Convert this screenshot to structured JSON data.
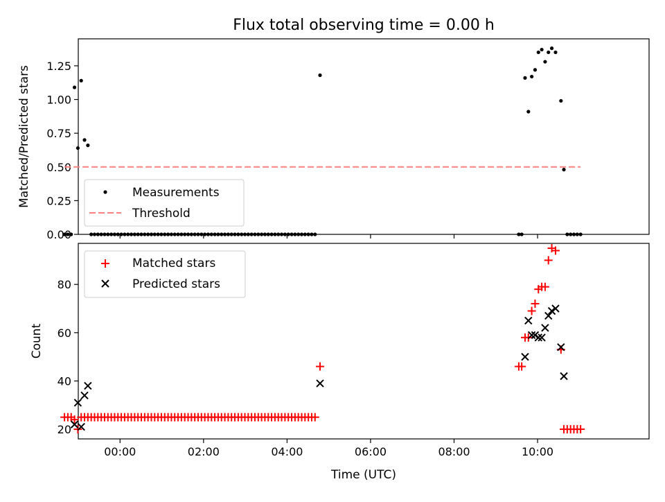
{
  "title": "Flux total observing time = 0.00 h",
  "colors": {
    "measurement": "#000000",
    "threshold": "#ff7f7f",
    "matched": "#ff0000",
    "predicted": "#000000"
  },
  "chart_data": [
    {
      "type": "scatter",
      "ylabel": "Matched/Predicted stars",
      "xlim": [
        -1.0,
        12.67
      ],
      "ylim": [
        0,
        1.45
      ],
      "yticks": [
        "0.00",
        "0.25",
        "0.50",
        "0.75",
        "1.00",
        "1.25"
      ],
      "grid": false,
      "legend_position": "lower-left",
      "series": [
        {
          "name": "Measurements",
          "marker": "dot",
          "x": [
            -1.33,
            -1.25,
            -1.17,
            -1.09,
            -1.01,
            -0.93,
            -0.85,
            -0.77,
            -0.69,
            -0.61,
            -0.53,
            -0.45,
            -0.37,
            -0.29,
            -0.21,
            -0.13,
            -0.05,
            0.03,
            0.11,
            0.19,
            0.27,
            0.35,
            0.43,
            0.51,
            0.59,
            0.67,
            0.75,
            0.83,
            0.91,
            0.99,
            1.07,
            1.15,
            1.23,
            1.31,
            1.39,
            1.47,
            1.55,
            1.63,
            1.71,
            1.79,
            1.87,
            1.95,
            2.03,
            2.11,
            2.19,
            2.27,
            2.35,
            2.43,
            2.51,
            2.59,
            2.67,
            2.75,
            2.83,
            2.91,
            2.99,
            3.07,
            3.15,
            3.23,
            3.31,
            3.39,
            3.47,
            3.55,
            3.63,
            3.71,
            3.79,
            3.87,
            3.95,
            4.03,
            4.11,
            4.19,
            4.27,
            4.35,
            4.43,
            4.51,
            4.59,
            4.67,
            4.79,
            9.55,
            9.62,
            9.7,
            9.78,
            9.86,
            9.94,
            10.02,
            10.1,
            10.18,
            10.26,
            10.34,
            10.43,
            10.56,
            10.63,
            10.71,
            10.79,
            10.87,
            10.95,
            11.03
          ],
          "y": [
            0,
            0,
            0,
            1.09,
            0.64,
            1.14,
            0.7,
            0.66,
            0,
            0,
            0,
            0,
            0,
            0,
            0,
            0,
            0,
            0,
            0,
            0,
            0,
            0,
            0,
            0,
            0,
            0,
            0,
            0,
            0,
            0,
            0,
            0,
            0,
            0,
            0,
            0,
            0,
            0,
            0,
            0,
            0,
            0,
            0,
            0,
            0,
            0,
            0,
            0,
            0,
            0,
            0,
            0,
            0,
            0,
            0,
            0,
            0,
            0,
            0,
            0,
            0,
            0,
            0,
            0,
            0,
            0,
            0,
            0,
            0,
            0,
            0,
            0,
            0,
            0,
            0,
            0,
            1.18,
            0,
            0,
            1.16,
            0.91,
            1.17,
            1.22,
            1.35,
            1.37,
            1.28,
            1.35,
            1.38,
            1.35,
            0.99,
            0.48,
            0,
            0,
            0,
            0,
            0
          ]
        },
        {
          "name": "Threshold",
          "style": "dashed",
          "x": [
            -1.33,
            11.03
          ],
          "y": [
            0.5,
            0.5
          ]
        }
      ]
    },
    {
      "type": "scatter",
      "xlabel": "Time (UTC)",
      "ylabel": "Count",
      "xlim": [
        -1.0,
        12.67
      ],
      "ylim": [
        16,
        97
      ],
      "xticks": [
        {
          "v": 0,
          "label": "00:00"
        },
        {
          "v": 2,
          "label": "02:00"
        },
        {
          "v": 4,
          "label": "04:00"
        },
        {
          "v": 6,
          "label": "06:00"
        },
        {
          "v": 8,
          "label": "08:00"
        },
        {
          "v": 10,
          "label": "10:00"
        }
      ],
      "yticks": [
        "20",
        "40",
        "60",
        "80"
      ],
      "grid": false,
      "legend_position": "upper-left",
      "series": [
        {
          "name": "Matched stars",
          "marker": "plus",
          "x": [
            -1.33,
            -1.25,
            -1.17,
            -1.09,
            -1.01,
            -0.93,
            -0.85,
            -0.77,
            -0.69,
            -0.61,
            -0.53,
            -0.45,
            -0.37,
            -0.29,
            -0.21,
            -0.13,
            -0.05,
            0.03,
            0.11,
            0.19,
            0.27,
            0.35,
            0.43,
            0.51,
            0.59,
            0.67,
            0.75,
            0.83,
            0.91,
            0.99,
            1.07,
            1.15,
            1.23,
            1.31,
            1.39,
            1.47,
            1.55,
            1.63,
            1.71,
            1.79,
            1.87,
            1.95,
            2.03,
            2.11,
            2.19,
            2.27,
            2.35,
            2.43,
            2.51,
            2.59,
            2.67,
            2.75,
            2.83,
            2.91,
            2.99,
            3.07,
            3.15,
            3.23,
            3.31,
            3.39,
            3.47,
            3.55,
            3.63,
            3.71,
            3.79,
            3.87,
            3.95,
            4.03,
            4.11,
            4.19,
            4.27,
            4.35,
            4.43,
            4.51,
            4.59,
            4.67,
            4.79,
            9.55,
            9.62,
            9.7,
            9.78,
            9.86,
            9.94,
            10.02,
            10.1,
            10.18,
            10.26,
            10.34,
            10.43,
            10.56,
            10.63,
            10.71,
            10.79,
            10.87,
            10.95,
            11.03
          ],
          "y": [
            25,
            25,
            25,
            24,
            20,
            25,
            25,
            25,
            25,
            25,
            25,
            25,
            25,
            25,
            25,
            25,
            25,
            25,
            25,
            25,
            25,
            25,
            25,
            25,
            25,
            25,
            25,
            25,
            25,
            25,
            25,
            25,
            25,
            25,
            25,
            25,
            25,
            25,
            25,
            25,
            25,
            25,
            25,
            25,
            25,
            25,
            25,
            25,
            25,
            25,
            25,
            25,
            25,
            25,
            25,
            25,
            25,
            25,
            25,
            25,
            25,
            25,
            25,
            25,
            25,
            25,
            25,
            25,
            25,
            25,
            25,
            25,
            25,
            25,
            25,
            25,
            46,
            46,
            46,
            58,
            58,
            69,
            72,
            78,
            79,
            79,
            90,
            95,
            94,
            53,
            20,
            20,
            20,
            20,
            20,
            20
          ]
        },
        {
          "name": "Predicted stars",
          "marker": "x",
          "x": [
            -1.09,
            -1.01,
            -0.93,
            -0.85,
            -0.77,
            4.79,
            9.7,
            9.78,
            9.86,
            9.94,
            10.02,
            10.1,
            10.18,
            10.26,
            10.34,
            10.43,
            10.56,
            10.63
          ],
          "y": [
            22,
            31,
            21,
            34,
            38,
            39,
            50,
            65,
            59,
            59,
            58,
            58,
            62,
            67,
            69,
            70,
            54,
            42
          ]
        }
      ]
    }
  ]
}
